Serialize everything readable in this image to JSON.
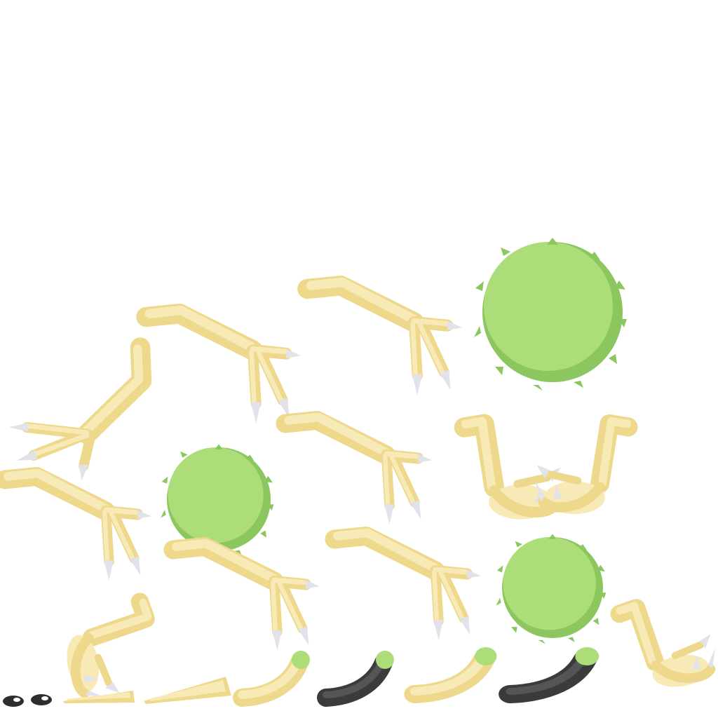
{
  "sprite_sheet": {
    "background": "#ffffff",
    "palette": {
      "bone_fill": "#f8eab7",
      "bone_shade": "#eed88b",
      "claw_fill": "#e2e2ea",
      "claw_shade": "#c9c9d4",
      "fluff_light": "#acdd78",
      "fluff_dark": "#8cc65e",
      "dark_gray": "#4a4a4a",
      "eye_white": "#ffffff"
    },
    "sprites": [
      {
        "name": "bird-leg-bent-left-claw",
        "icon": "bird-leg-icon"
      },
      {
        "name": "bird-leg-walking",
        "icon": "bird-leg-icon"
      },
      {
        "name": "bird-leg-walking",
        "icon": "bird-leg-icon"
      },
      {
        "name": "fluff-ball-large",
        "icon": "fluff-ball-icon"
      },
      {
        "name": "fluff-ball-medium",
        "icon": "fluff-ball-icon"
      },
      {
        "name": "fluff-ball-small",
        "icon": "fluff-ball-icon"
      },
      {
        "name": "tail-segment",
        "icon": "tail-icon"
      },
      {
        "name": "eye",
        "icon": "eye-icon"
      }
    ]
  }
}
